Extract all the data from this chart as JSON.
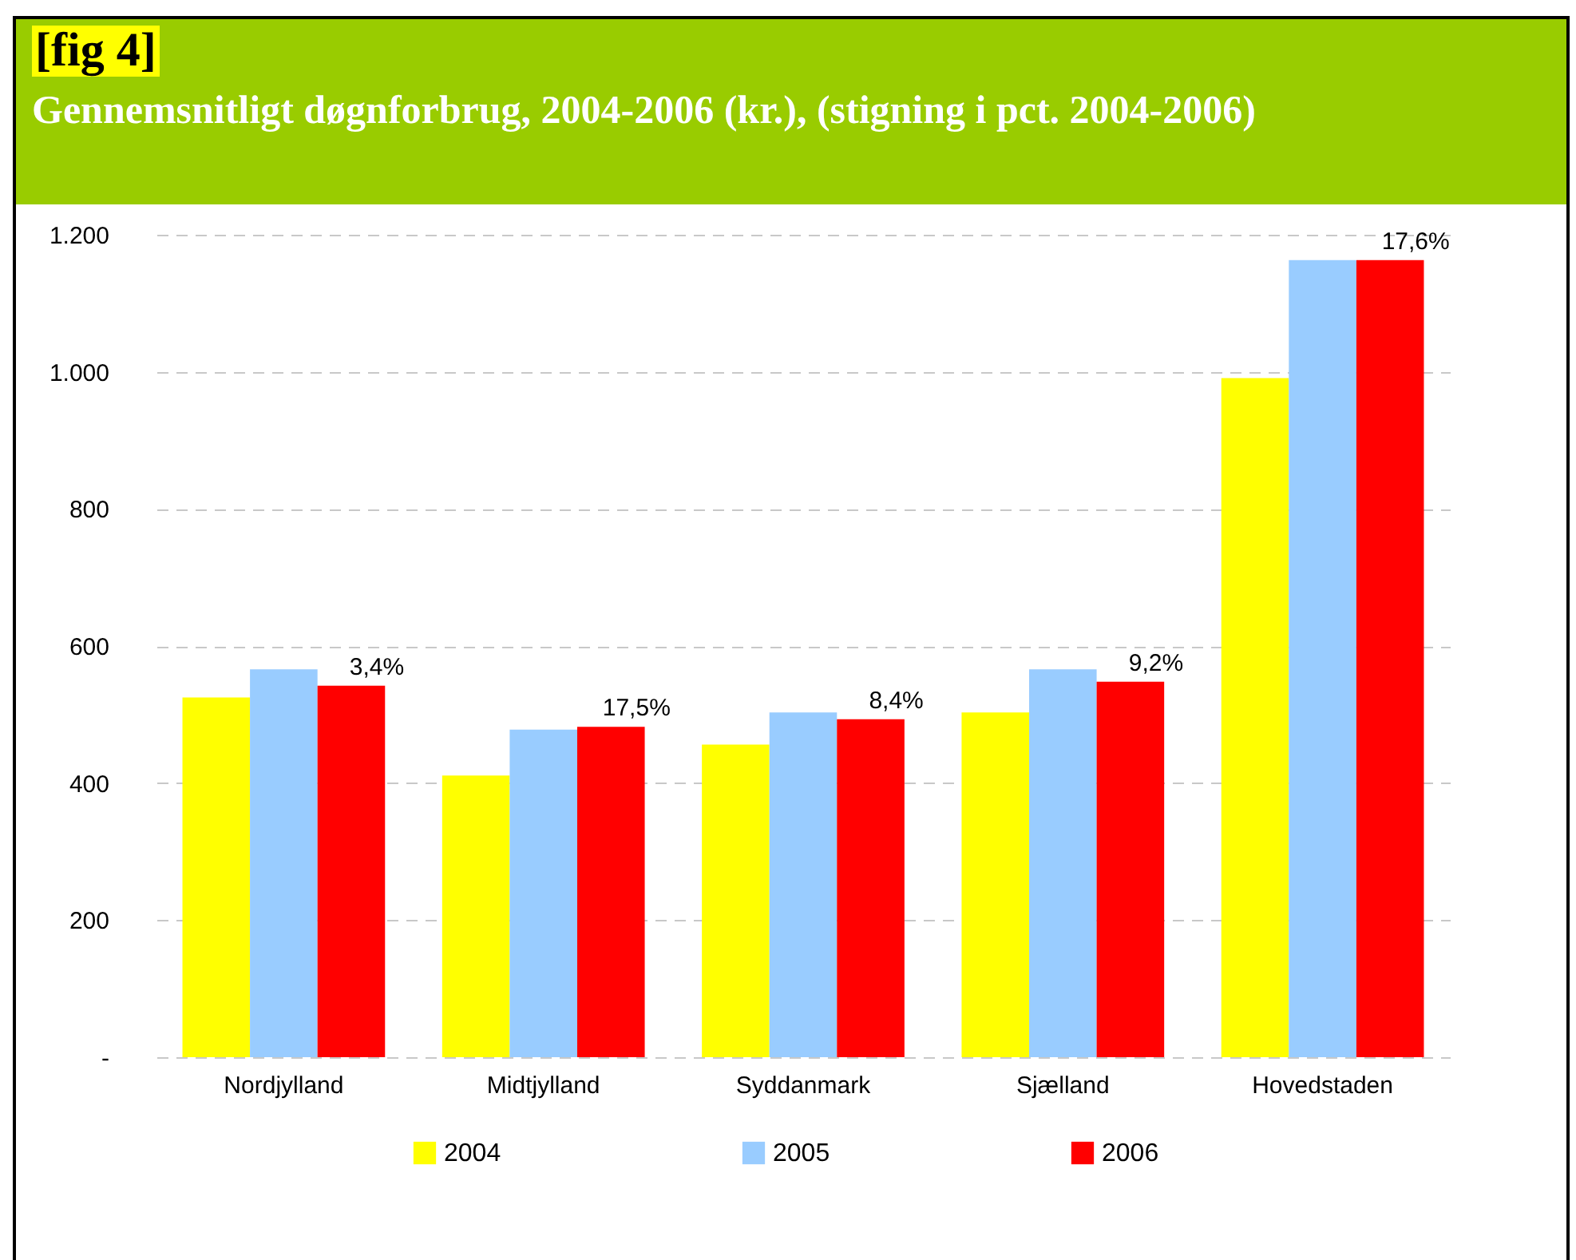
{
  "chart_data": {
    "type": "bar",
    "title": "[fig 4]",
    "subtitle": "Gennemsnitligt døgnforbrug, 2004-2006 (kr.), (stigning i pct. 2004-2006)",
    "categories": [
      "Nordjylland",
      "Midtjylland",
      "Syddanmark",
      "Sjælland",
      "Hovedstaden"
    ],
    "series": [
      {
        "name": "2004",
        "color": "#ffff00",
        "values": [
          525,
          411,
          456,
          503,
          991
        ]
      },
      {
        "name": "2005",
        "color": "#99ccff",
        "values": [
          566,
          478,
          503,
          566,
          1163
        ]
      },
      {
        "name": "2006",
        "color": "#ff0000",
        "values": [
          542,
          482,
          493,
          548,
          1163
        ]
      }
    ],
    "annotations": [
      "3,4%",
      "17,5%",
      "8,4%",
      "9,2%",
      "17,6%"
    ],
    "ylim": [
      0,
      1200
    ],
    "yticks": [
      {
        "value": 0,
        "label": "-"
      },
      200,
      400,
      600,
      800,
      {
        "value": 1000,
        "label": "1.000"
      },
      {
        "value": 1200,
        "label": "1.200"
      }
    ],
    "grid": "y",
    "legend": "bottom"
  }
}
